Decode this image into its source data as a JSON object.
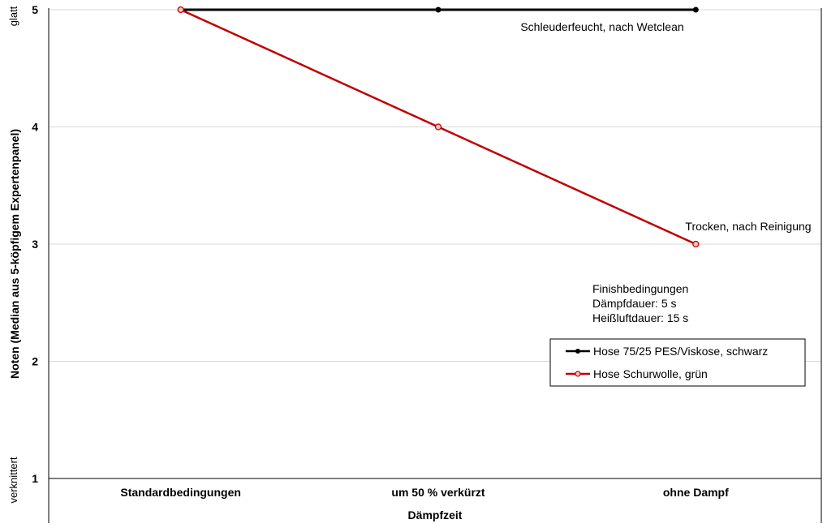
{
  "chart_data": {
    "type": "line",
    "categories": [
      "Standardbedingungen",
      "um 50 % verkürzt",
      "ohne Dampf"
    ],
    "series": [
      {
        "name": "Hose 75/25 PES/Viskose, schwarz",
        "values": [
          5,
          5,
          5
        ],
        "color": "#000000"
      },
      {
        "name": "Hose Schurwolle, grün",
        "values": [
          5,
          4,
          3
        ],
        "color": "#c00000"
      }
    ],
    "xlabel": "Dämpfzeit",
    "ylabel": "Noten (Median aus 5-köpfigem Expertenpanel)",
    "ylim": [
      1,
      5
    ],
    "yticks": [
      "1",
      "2",
      "3",
      "4",
      "5"
    ],
    "y_top_label": "glatt",
    "y_bottom_label": "verknittert",
    "grid": true,
    "legend_position": "right",
    "annotations": {
      "black_line": "Schleuderfeucht, nach Wetclean",
      "red_end": "Trocken, nach Reinigung",
      "conditions": [
        "Finishbedingungen",
        "Dämpfdauer: 5 s",
        "Heißluftdauer: 15 s"
      ]
    }
  }
}
